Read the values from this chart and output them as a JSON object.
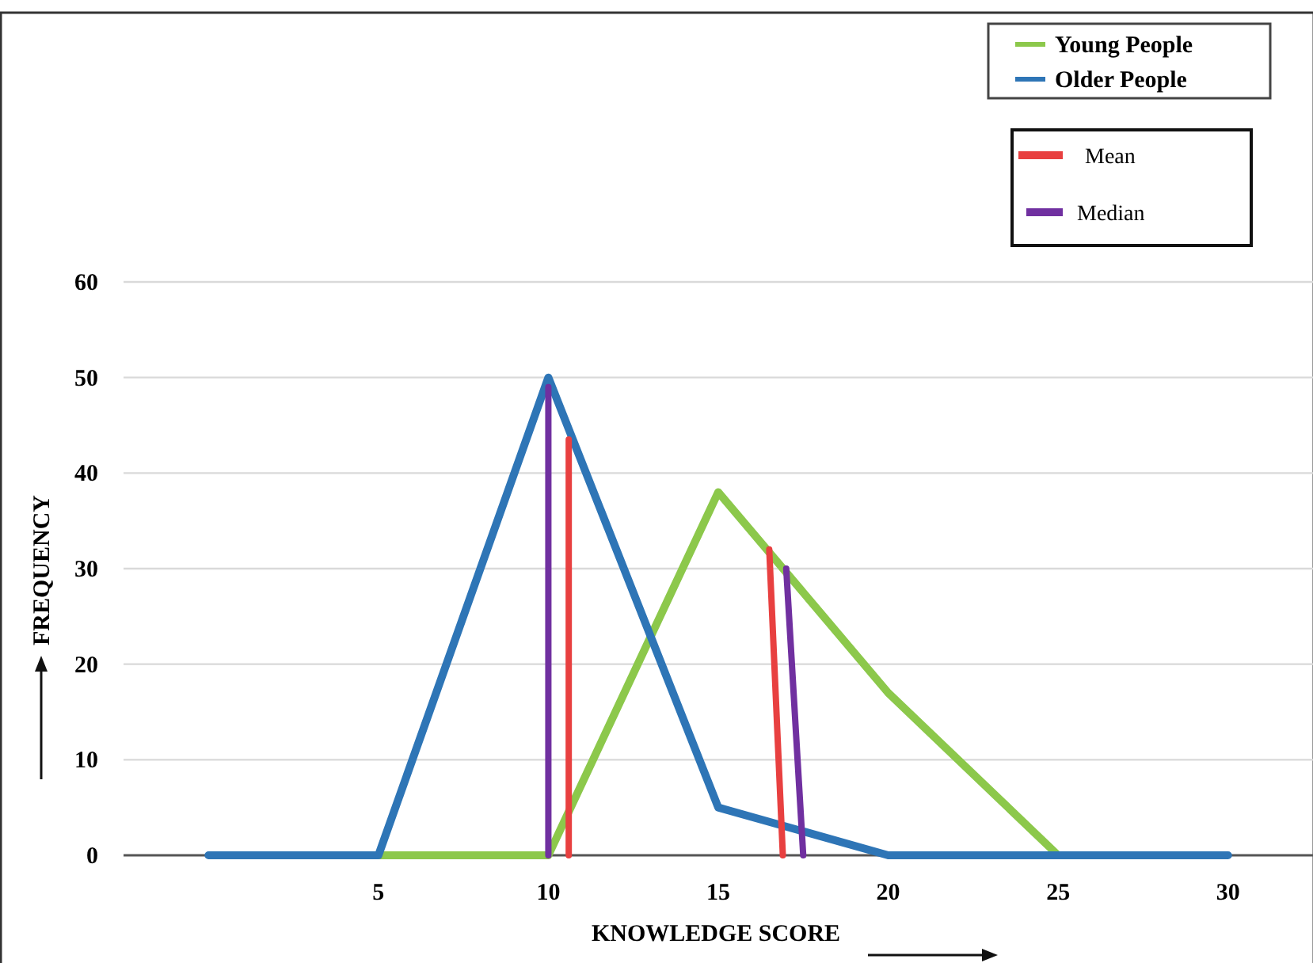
{
  "chart_data": {
    "type": "line",
    "xlabel": "KNOWLEDGE SCORE",
    "ylabel": "FREQUENCY",
    "xlim": [
      -2.5,
      32.5
    ],
    "xticks": [
      5,
      10,
      15,
      20,
      25,
      30
    ],
    "ylim": [
      0,
      60
    ],
    "yticks": [
      0,
      10,
      20,
      30,
      40,
      50,
      60
    ],
    "grid": "y",
    "legend": "top right",
    "marker": "none",
    "line_style": "solid",
    "series": [
      {
        "name": "Young People",
        "color": "#8cc84b",
        "x": [
          5,
          10,
          15,
          20,
          25
        ],
        "values": [
          0,
          0,
          38,
          17,
          0
        ]
      },
      {
        "name": "Older People",
        "color": "#2e75b6",
        "x": [
          0,
          5,
          10,
          15,
          20,
          25,
          30
        ],
        "values": [
          0,
          0,
          50,
          5,
          0,
          0,
          0
        ]
      },
      {
        "name": "Mean",
        "color": "#e84040",
        "x": [
          10.6,
          10.6,
          13.5,
          16.5,
          16.9
        ],
        "values": [
          43.5,
          0,
          null,
          32,
          0
        ]
      },
      {
        "name": "Median",
        "color": "#7030a0",
        "x": [
          10,
          10,
          13.5,
          17,
          17.5
        ],
        "values": [
          49,
          0,
          null,
          30,
          0
        ]
      }
    ]
  }
}
